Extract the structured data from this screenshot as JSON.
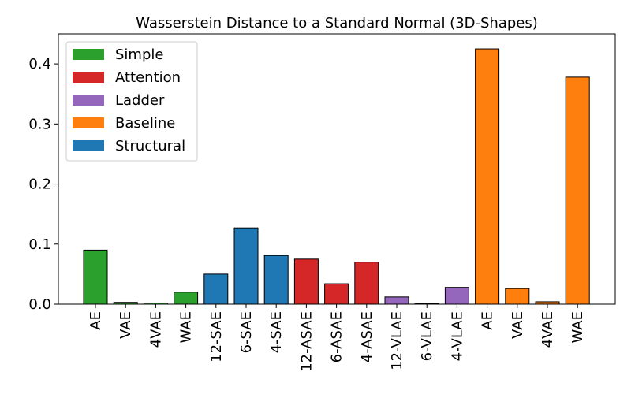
{
  "chart_data": {
    "type": "bar",
    "title": "Wasserstein Distance to a Standard Normal (3D-Shapes)",
    "xlabel": "",
    "ylabel": "",
    "ylim": [
      0,
      0.45
    ],
    "yticks": [
      "0.0",
      "0.1",
      "0.2",
      "0.3",
      "0.4"
    ],
    "categories": [
      "AE",
      "VAE",
      "4VAE",
      "WAE",
      "12-SAE",
      "6-SAE",
      "4-SAE",
      "12-ASAE",
      "6-ASAE",
      "4-ASAE",
      "12-VLAE",
      "6-VLAE",
      "4-VLAE",
      "AE",
      "VAE",
      "4VAE",
      "WAE"
    ],
    "values": [
      0.09,
      0.003,
      0.002,
      0.02,
      0.05,
      0.127,
      0.081,
      0.075,
      0.034,
      0.07,
      0.012,
      0.0005,
      0.028,
      0.425,
      0.026,
      0.004,
      0.378
    ],
    "groups": [
      "Simple",
      "Simple",
      "Simple",
      "Simple",
      "Structural",
      "Structural",
      "Structural",
      "Attention",
      "Attention",
      "Attention",
      "Ladder",
      "Ladder",
      "Ladder",
      "Baseline",
      "Baseline",
      "Baseline",
      "Baseline"
    ],
    "legend": {
      "placement": "top-left",
      "entries": [
        {
          "name": "Simple",
          "color": "#2ca02c"
        },
        {
          "name": "Attention",
          "color": "#d62728"
        },
        {
          "name": "Ladder",
          "color": "#9467bd"
        },
        {
          "name": "Baseline",
          "color": "#ff7f0e"
        },
        {
          "name": "Structural",
          "color": "#1f77b4"
        }
      ]
    },
    "grid": false
  }
}
